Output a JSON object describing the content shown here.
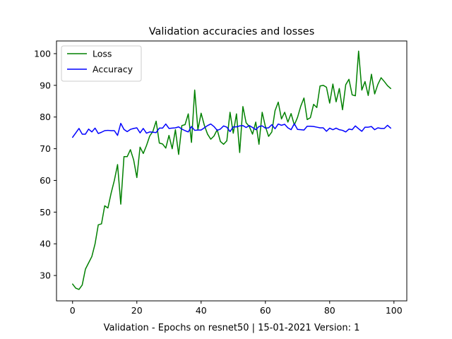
{
  "chart_data": {
    "type": "line",
    "title": "Validation accuracies and losses",
    "xlabel": "Validation - Epochs on resnet50 | 15-01-2021 Version: 1",
    "ylabel": "",
    "xlim": [
      -5,
      104
    ],
    "ylim": [
      22,
      104
    ],
    "xticks": [
      0,
      20,
      40,
      60,
      80,
      100
    ],
    "yticks": [
      30,
      40,
      50,
      60,
      70,
      80,
      90,
      100
    ],
    "grid": false,
    "legend_position": "upper-left",
    "x": [
      0,
      1,
      2,
      3,
      4,
      5,
      6,
      7,
      8,
      9,
      10,
      11,
      12,
      13,
      14,
      15,
      16,
      17,
      18,
      19,
      20,
      21,
      22,
      23,
      24,
      25,
      26,
      27,
      28,
      29,
      30,
      31,
      32,
      33,
      34,
      35,
      36,
      37,
      38,
      39,
      40,
      41,
      42,
      43,
      44,
      45,
      46,
      47,
      48,
      49,
      50,
      51,
      52,
      53,
      54,
      55,
      56,
      57,
      58,
      59,
      60,
      61,
      62,
      63,
      64,
      65,
      66,
      67,
      68,
      69,
      70,
      71,
      72,
      73,
      74,
      75,
      76,
      77,
      78,
      79,
      80,
      81,
      82,
      83,
      84,
      85,
      86,
      87,
      88,
      89,
      90,
      91,
      92,
      93,
      94,
      95,
      96,
      97,
      98,
      99
    ],
    "series": [
      {
        "name": "Loss",
        "color": "#008000",
        "values": [
          27.3,
          26.0,
          25.6,
          27.0,
          32.0,
          34.0,
          36.0,
          40.0,
          46.0,
          46.3,
          52.0,
          51.3,
          56.0,
          60.0,
          65.0,
          52.5,
          67.5,
          67.5,
          69.7,
          66.5,
          60.9,
          70.5,
          68.5,
          71.0,
          74.0,
          75.5,
          78.7,
          71.8,
          71.5,
          70.2,
          74.2,
          70.0,
          76.0,
          68.2,
          77.3,
          77.6,
          81.0,
          72.0,
          88.5,
          76.0,
          81.2,
          77.4,
          74.6,
          73.0,
          74.0,
          76.0,
          72.3,
          71.4,
          72.5,
          81.5,
          74.9,
          81.0,
          68.8,
          83.3,
          78.2,
          77.0,
          74.6,
          78.4,
          71.4,
          81.5,
          77.0,
          73.9,
          75.3,
          82.0,
          84.7,
          79.4,
          81.5,
          78.4,
          81.1,
          77.5,
          79.9,
          83.4,
          86.0,
          79.2,
          79.8,
          84.0,
          83.0,
          89.8,
          90.0,
          89.4,
          84.4,
          90.4,
          84.8,
          89.0,
          82.3,
          90.2,
          91.9,
          87.0,
          86.7,
          100.8,
          88.5,
          91.2,
          86.8,
          93.5,
          87.3,
          90.3,
          92.4,
          91.2,
          89.9,
          89.0
        ]
      },
      {
        "name": "Accuracy",
        "color": "#0000ff",
        "values": [
          73.6,
          75.0,
          76.4,
          74.6,
          74.6,
          76.2,
          75.3,
          76.5,
          74.8,
          75.2,
          75.7,
          75.8,
          75.7,
          75.7,
          74.2,
          78.0,
          76.1,
          75.4,
          76.1,
          76.4,
          76.6,
          75.0,
          76.4,
          74.9,
          75.3,
          75.2,
          75.1,
          76.5,
          76.5,
          77.8,
          76.4,
          76.5,
          76.6,
          76.9,
          76.2,
          75.7,
          75.3,
          77.0,
          75.8,
          75.9,
          75.9,
          76.6,
          77.3,
          77.8,
          77.0,
          75.8,
          76.2,
          77.2,
          76.8,
          75.4,
          76.9,
          76.9,
          77.2,
          77.3,
          76.7,
          77.3,
          76.7,
          76.0,
          77.0,
          77.2,
          76.5,
          76.6,
          77.6,
          76.3,
          77.8,
          77.4,
          77.7,
          76.6,
          76.0,
          77.9,
          76.1,
          76.0,
          75.9,
          77.1,
          77.1,
          77.0,
          76.8,
          76.6,
          76.6,
          75.5,
          76.5,
          76.0,
          76.5,
          76.0,
          75.8,
          75.3,
          76.2,
          76.0,
          77.2,
          76.3,
          75.5,
          76.8,
          76.8,
          77.0,
          76.0,
          76.6,
          76.4,
          76.4,
          77.4,
          76.5
        ]
      }
    ]
  }
}
